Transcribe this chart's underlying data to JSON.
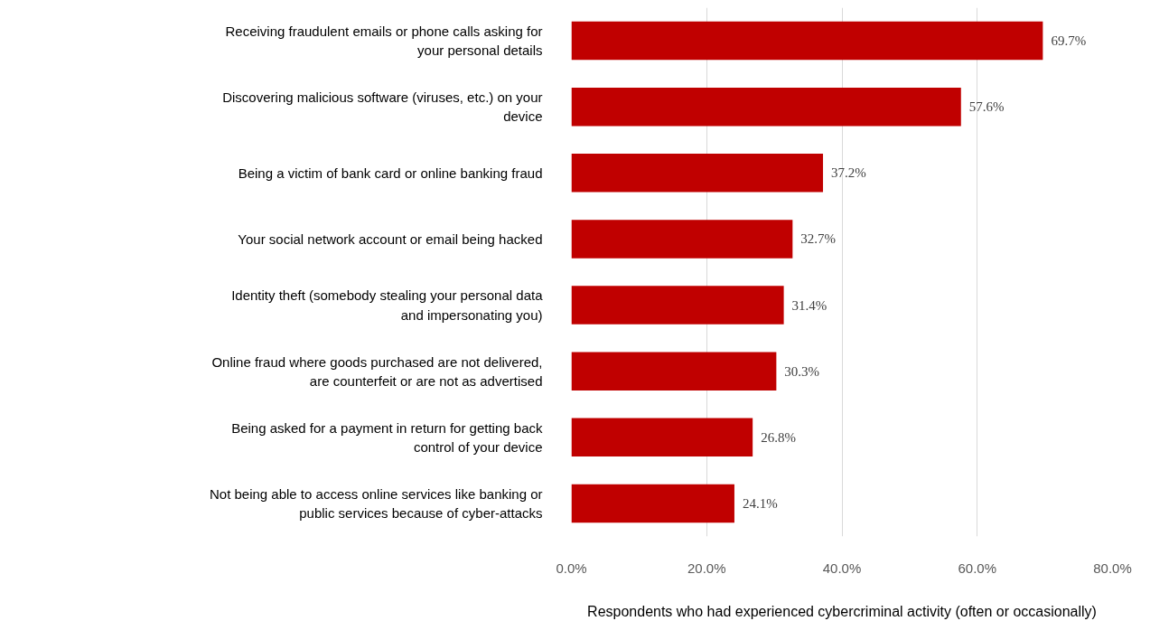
{
  "chart_data": {
    "type": "bar",
    "orientation": "horizontal",
    "categories": [
      "Receiving fraudulent emails or phone calls asking for\nyour personal details",
      "Discovering malicious software (viruses, etc.) on your\ndevice",
      "Being a victim of bank card or online banking fraud",
      "Your social network account or email being hacked",
      "Identity theft (somebody stealing your personal data\nand impersonating you)",
      "Online fraud where goods purchased are not delivered,\nare counterfeit or are not as advertised",
      "Being asked for a payment in return for getting back\ncontrol of your device",
      "Not being able to access online services like banking or\npublic services because of cyber-attacks"
    ],
    "values": [
      69.7,
      57.6,
      37.2,
      32.7,
      31.4,
      30.3,
      26.8,
      24.1
    ],
    "value_labels": [
      "69.7%",
      "57.6%",
      "37.2%",
      "32.7%",
      "31.4%",
      "30.3%",
      "26.8%",
      "24.1%"
    ],
    "color": "#c00000",
    "xlim": [
      0,
      80
    ],
    "xticks": [
      {
        "value": 0,
        "label": "0.0%"
      },
      {
        "value": 20,
        "label": "20.0%"
      },
      {
        "value": 40,
        "label": "40.0%"
      },
      {
        "value": 60,
        "label": "60.0%"
      },
      {
        "value": 80,
        "label": "80.0%"
      }
    ],
    "grid": "x",
    "xlabel": "Respondents who had experienced cybercriminal activity (often or occasionally)"
  }
}
